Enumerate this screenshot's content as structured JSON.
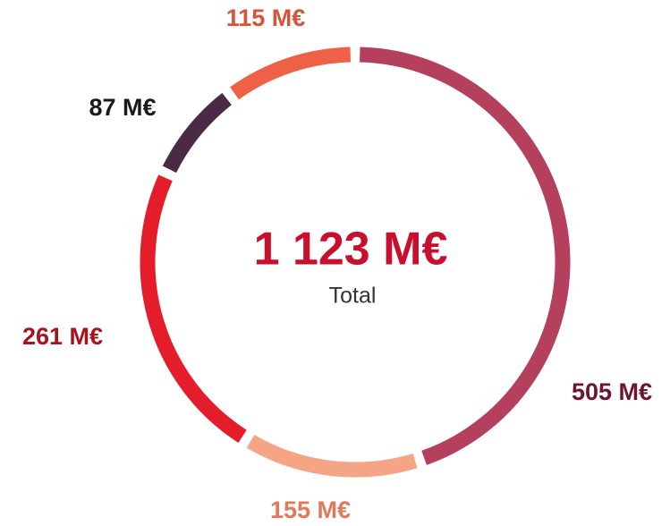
{
  "chart_data": {
    "type": "donut",
    "center_title": "1 123 M€",
    "center_subtitle": "Total",
    "categories": [
      null,
      null,
      null,
      null,
      null
    ],
    "values": [
      505,
      155,
      261,
      87,
      115
    ],
    "value_labels": [
      "505 M€",
      "155 M€",
      "261 M€",
      "87 M€",
      "115 M€"
    ],
    "colors": [
      "#b5405e",
      "#f5a585",
      "#e31e2a",
      "#4a2a45",
      "#ef6146"
    ],
    "label_colors": [
      "#6b1530",
      "#e07a5a",
      "#a8141e",
      "#1a1a1a",
      "#d4553a"
    ]
  }
}
